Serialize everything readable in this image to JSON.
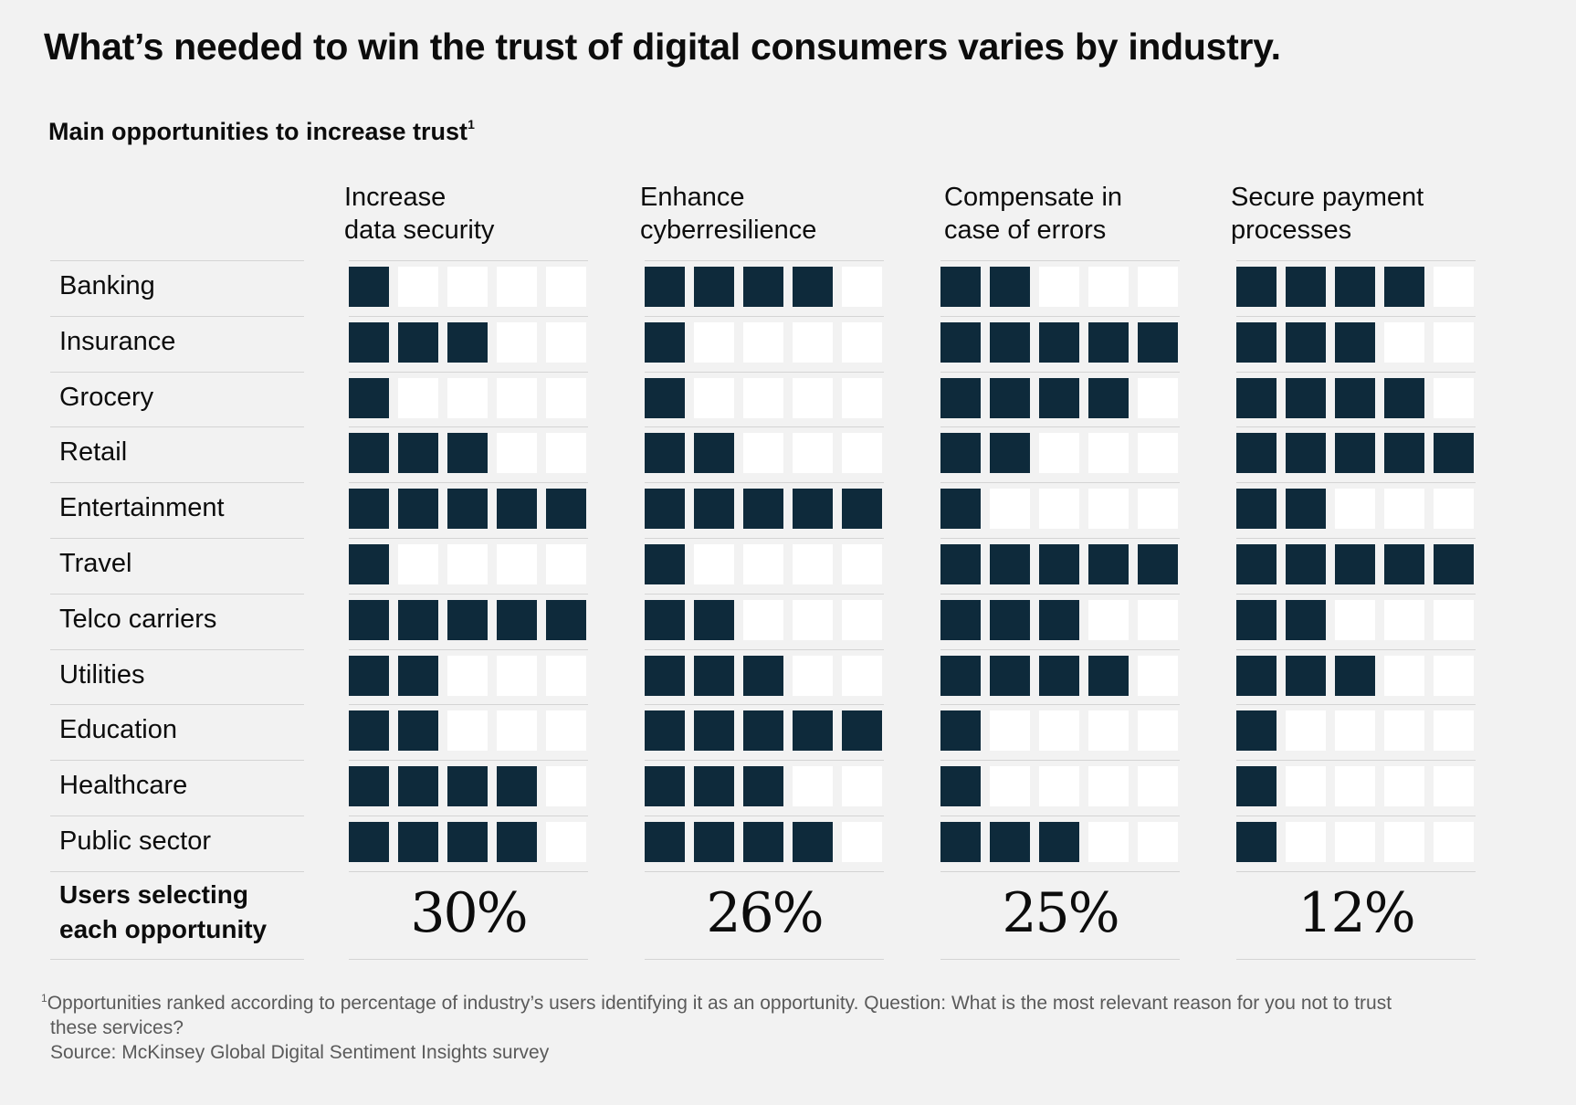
{
  "title": "What’s needed to win the trust of digital consumers varies by industry.",
  "subtitle": "Main opportunities to increase trust",
  "subtitle_footnote_mark": "1",
  "chart_data": {
    "type": "table",
    "title": "What’s needed to win the trust of digital consumers varies by industry.",
    "subtitle": "Main opportunities to increase trust",
    "scale_max": 5,
    "categories": [
      "Banking",
      "Insurance",
      "Grocery",
      "Retail",
      "Entertainment",
      "Travel",
      "Telco carriers",
      "Utilities",
      "Education",
      "Healthcare",
      "Public sector"
    ],
    "series": [
      {
        "name_line1": "Increase",
        "name_line2": "data security",
        "values": [
          1,
          3,
          1,
          3,
          5,
          1,
          5,
          2,
          2,
          4,
          4
        ],
        "total": "30%"
      },
      {
        "name_line1": "Enhance",
        "name_line2": "cyberresilience",
        "values": [
          4,
          1,
          1,
          2,
          5,
          1,
          2,
          3,
          5,
          3,
          4
        ],
        "total": "26%"
      },
      {
        "name_line1": "Compensate in",
        "name_line2": "case of errors",
        "values": [
          2,
          5,
          4,
          2,
          1,
          5,
          3,
          4,
          1,
          1,
          3
        ],
        "total": "25%"
      },
      {
        "name_line1": "Secure payment",
        "name_line2": "processes",
        "values": [
          4,
          3,
          4,
          5,
          2,
          5,
          2,
          3,
          1,
          1,
          1
        ],
        "total": "12%"
      }
    ],
    "totals_label_line1": "Users selecting",
    "totals_label_line2": "each opportunity"
  },
  "footnote": {
    "mark": "1",
    "line1": "Opportunities ranked according to percentage of industry’s users identifying it as an opportunity. Question: What is the most relevant reason for you not to trust",
    "line2": "these services?",
    "source": "Source: McKinsey Global Digital Sentiment Insights survey"
  },
  "colors": {
    "filled": "#0e2a3b",
    "empty": "#ffffff",
    "background": "#f2f2f2",
    "rule": "#d4d4d4"
  }
}
